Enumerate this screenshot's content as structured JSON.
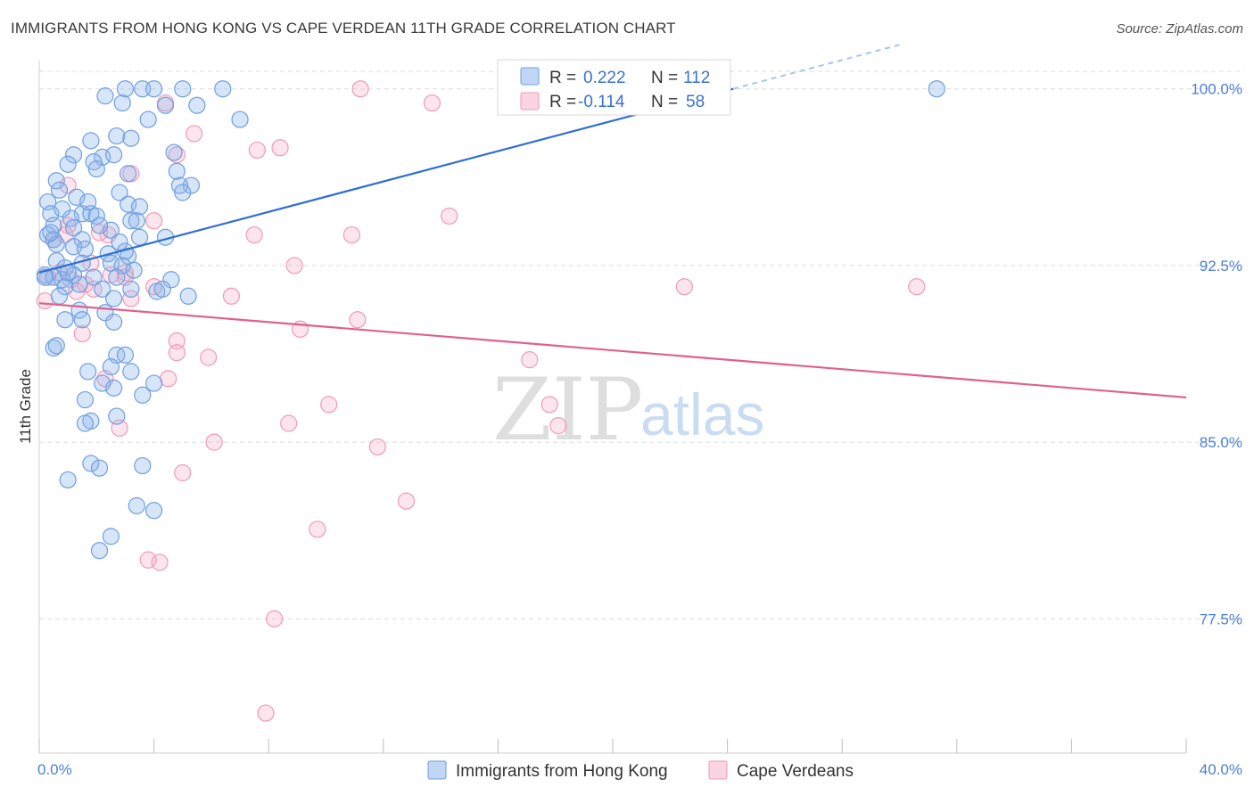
{
  "title": "IMMIGRANTS FROM HONG KONG VS CAPE VERDEAN 11TH GRADE CORRELATION CHART",
  "source": "Source: ZipAtlas.com",
  "watermark": {
    "zip": "ZIP",
    "atlas": "atlas"
  },
  "colors": {
    "blue_fill": "rgba(140,180,235,0.35)",
    "blue_stroke": "#6f9fe0",
    "blue_line": "#2f6fd0",
    "pink_fill": "rgba(245,170,195,0.30)",
    "pink_stroke": "#ef9ab8",
    "pink_line": "#e0608a",
    "grid": "#dcdcdc",
    "tick_text": "#4a7fd4"
  },
  "legend_top": {
    "rows": [
      {
        "r_label": "R =",
        "r_value": "0.222",
        "n_label": "N =",
        "n_value": "112"
      },
      {
        "r_label": "R =",
        "r_value": "-0.114",
        "n_label": "N =",
        "n_value": "58"
      }
    ]
  },
  "legend_bottom": {
    "items": [
      {
        "label": "Immigrants from Hong Kong"
      },
      {
        "label": "Cape Verdeans"
      }
    ]
  },
  "chart_data": {
    "type": "scatter",
    "title": "IMMIGRANTS FROM HONG KONG VS CAPE VERDEAN 11TH GRADE CORRELATION CHART",
    "xlabel": "",
    "ylabel": "11th Grade",
    "xlim": [
      0,
      40
    ],
    "ylim": [
      71.8,
      101.2
    ],
    "x_tick_labels": [
      {
        "value": 0,
        "label": "0.0%"
      },
      {
        "value": 40,
        "label": "40.0%"
      }
    ],
    "x_minor_ticks": [
      0,
      4,
      8,
      12,
      16,
      20,
      24,
      28,
      32,
      36,
      40
    ],
    "y_ticks": [
      {
        "value": 100.0,
        "label": "100.0%"
      },
      {
        "value": 92.5,
        "label": "92.5%"
      },
      {
        "value": 85.0,
        "label": "85.0%"
      },
      {
        "value": 77.5,
        "label": "77.5%"
      }
    ],
    "series": [
      {
        "name": "Immigrants from Hong Kong",
        "r": 0.222,
        "n": 112,
        "trend": {
          "x_start": 0.0,
          "y_start": 92.2,
          "x_end": 24.2,
          "y_end": 100.0,
          "dashed_to_x": 30.0
        },
        "points": [
          [
            3.0,
            100
          ],
          [
            3.6,
            100
          ],
          [
            4.0,
            100
          ],
          [
            5.0,
            100
          ],
          [
            6.4,
            100
          ],
          [
            31.3,
            100
          ],
          [
            2.3,
            99.7
          ],
          [
            2.9,
            99.4
          ],
          [
            5.5,
            99.3
          ],
          [
            4.4,
            99.3
          ],
          [
            7.0,
            98.7
          ],
          [
            3.8,
            98.7
          ],
          [
            1.8,
            97.8
          ],
          [
            2.7,
            98.0
          ],
          [
            3.2,
            97.9
          ],
          [
            1.2,
            97.2
          ],
          [
            2.2,
            97.1
          ],
          [
            2.6,
            97.2
          ],
          [
            4.7,
            97.3
          ],
          [
            1.9,
            96.9
          ],
          [
            1.0,
            96.8
          ],
          [
            2.0,
            96.6
          ],
          [
            3.1,
            96.4
          ],
          [
            4.8,
            96.5
          ],
          [
            0.6,
            96.1
          ],
          [
            5.3,
            95.9
          ],
          [
            4.9,
            95.9
          ],
          [
            0.7,
            95.7
          ],
          [
            2.8,
            95.6
          ],
          [
            5.0,
            95.6
          ],
          [
            1.3,
            95.4
          ],
          [
            0.3,
            95.2
          ],
          [
            3.1,
            95.1
          ],
          [
            3.5,
            95.0
          ],
          [
            0.4,
            94.7
          ],
          [
            1.5,
            94.7
          ],
          [
            1.1,
            94.5
          ],
          [
            1.8,
            94.7
          ],
          [
            2.0,
            94.6
          ],
          [
            3.2,
            94.4
          ],
          [
            3.4,
            94.4
          ],
          [
            0.5,
            94.2
          ],
          [
            1.2,
            94.1
          ],
          [
            2.5,
            94.0
          ],
          [
            0.3,
            93.8
          ],
          [
            0.5,
            93.6
          ],
          [
            1.5,
            93.6
          ],
          [
            2.8,
            93.5
          ],
          [
            3.5,
            93.7
          ],
          [
            4.4,
            93.7
          ],
          [
            0.6,
            93.4
          ],
          [
            1.2,
            93.3
          ],
          [
            1.6,
            93.2
          ],
          [
            2.4,
            93.0
          ],
          [
            3.1,
            92.9
          ],
          [
            0.6,
            92.7
          ],
          [
            1.5,
            92.6
          ],
          [
            2.5,
            92.6
          ],
          [
            2.9,
            92.5
          ],
          [
            0.9,
            92.4
          ],
          [
            0.2,
            92.1
          ],
          [
            0.5,
            92.0
          ],
          [
            1.2,
            92.1
          ],
          [
            1.9,
            92.0
          ],
          [
            2.7,
            92.0
          ],
          [
            0.8,
            91.9
          ],
          [
            1.4,
            91.7
          ],
          [
            4.6,
            91.9
          ],
          [
            0.9,
            91.6
          ],
          [
            2.2,
            91.5
          ],
          [
            3.2,
            91.5
          ],
          [
            4.1,
            91.4
          ],
          [
            0.7,
            91.2
          ],
          [
            2.6,
            91.1
          ],
          [
            1.4,
            90.6
          ],
          [
            2.3,
            90.5
          ],
          [
            0.9,
            90.2
          ],
          [
            1.5,
            90.2
          ],
          [
            2.6,
            90.1
          ],
          [
            0.5,
            89.0
          ],
          [
            0.6,
            89.1
          ],
          [
            2.7,
            88.7
          ],
          [
            3.0,
            88.7
          ],
          [
            1.7,
            88.0
          ],
          [
            2.5,
            88.2
          ],
          [
            3.2,
            88.0
          ],
          [
            2.2,
            87.5
          ],
          [
            4.0,
            87.5
          ],
          [
            2.6,
            87.3
          ],
          [
            3.6,
            87.0
          ],
          [
            1.6,
            86.8
          ],
          [
            2.7,
            86.1
          ],
          [
            1.8,
            85.9
          ],
          [
            1.6,
            85.8
          ],
          [
            1.8,
            84.1
          ],
          [
            2.1,
            83.9
          ],
          [
            3.6,
            84.0
          ],
          [
            1.0,
            83.4
          ],
          [
            3.4,
            82.3
          ],
          [
            4.0,
            82.1
          ],
          [
            2.5,
            81.0
          ],
          [
            2.1,
            80.4
          ],
          [
            0.2,
            92.0
          ],
          [
            1.0,
            92.2
          ],
          [
            3.3,
            92.3
          ],
          [
            4.3,
            91.5
          ],
          [
            5.2,
            91.2
          ],
          [
            0.4,
            93.9
          ],
          [
            2.1,
            94.2
          ],
          [
            3.0,
            93.1
          ],
          [
            0.8,
            94.9
          ],
          [
            1.7,
            95.2
          ]
        ]
      },
      {
        "name": "Cape Verdeans",
        "r": -0.114,
        "n": 58,
        "trend": {
          "x_start": 0.0,
          "y_start": 90.9,
          "x_end": 40.0,
          "y_end": 86.9
        },
        "points": [
          [
            11.2,
            100
          ],
          [
            13.7,
            99.4
          ],
          [
            4.4,
            99.4
          ],
          [
            5.4,
            98.1
          ],
          [
            7.6,
            97.4
          ],
          [
            8.4,
            97.5
          ],
          [
            4.8,
            97.2
          ],
          [
            3.2,
            96.4
          ],
          [
            1.0,
            95.9
          ],
          [
            14.3,
            94.6
          ],
          [
            4.0,
            94.4
          ],
          [
            1.0,
            94.2
          ],
          [
            2.4,
            93.8
          ],
          [
            7.5,
            93.8
          ],
          [
            10.9,
            93.8
          ],
          [
            0.5,
            93.6
          ],
          [
            8.9,
            92.5
          ],
          [
            0.7,
            92.2
          ],
          [
            1.8,
            92.6
          ],
          [
            2.5,
            92.1
          ],
          [
            3.0,
            92.2
          ],
          [
            3.0,
            92.0
          ],
          [
            0.3,
            92.0
          ],
          [
            1.1,
            91.9
          ],
          [
            1.6,
            91.7
          ],
          [
            4.0,
            91.6
          ],
          [
            6.7,
            91.2
          ],
          [
            22.5,
            91.6
          ],
          [
            30.6,
            91.6
          ],
          [
            3.2,
            91.1
          ],
          [
            1.3,
            91.4
          ],
          [
            0.2,
            91.0
          ],
          [
            11.1,
            90.2
          ],
          [
            1.5,
            89.6
          ],
          [
            9.1,
            89.8
          ],
          [
            4.8,
            89.3
          ],
          [
            4.8,
            88.8
          ],
          [
            5.9,
            88.6
          ],
          [
            17.1,
            88.5
          ],
          [
            2.3,
            87.7
          ],
          [
            4.5,
            87.7
          ],
          [
            10.1,
            86.6
          ],
          [
            17.8,
            86.6
          ],
          [
            8.7,
            85.8
          ],
          [
            18.1,
            85.7
          ],
          [
            2.8,
            85.6
          ],
          [
            6.1,
            85.0
          ],
          [
            11.8,
            84.8
          ],
          [
            5.0,
            83.7
          ],
          [
            12.8,
            82.5
          ],
          [
            9.7,
            81.3
          ],
          [
            3.8,
            80.0
          ],
          [
            4.2,
            79.9
          ],
          [
            8.2,
            77.5
          ],
          [
            7.9,
            73.5
          ],
          [
            0.9,
            93.8
          ],
          [
            2.1,
            93.9
          ],
          [
            1.9,
            91.5
          ]
        ]
      }
    ]
  }
}
